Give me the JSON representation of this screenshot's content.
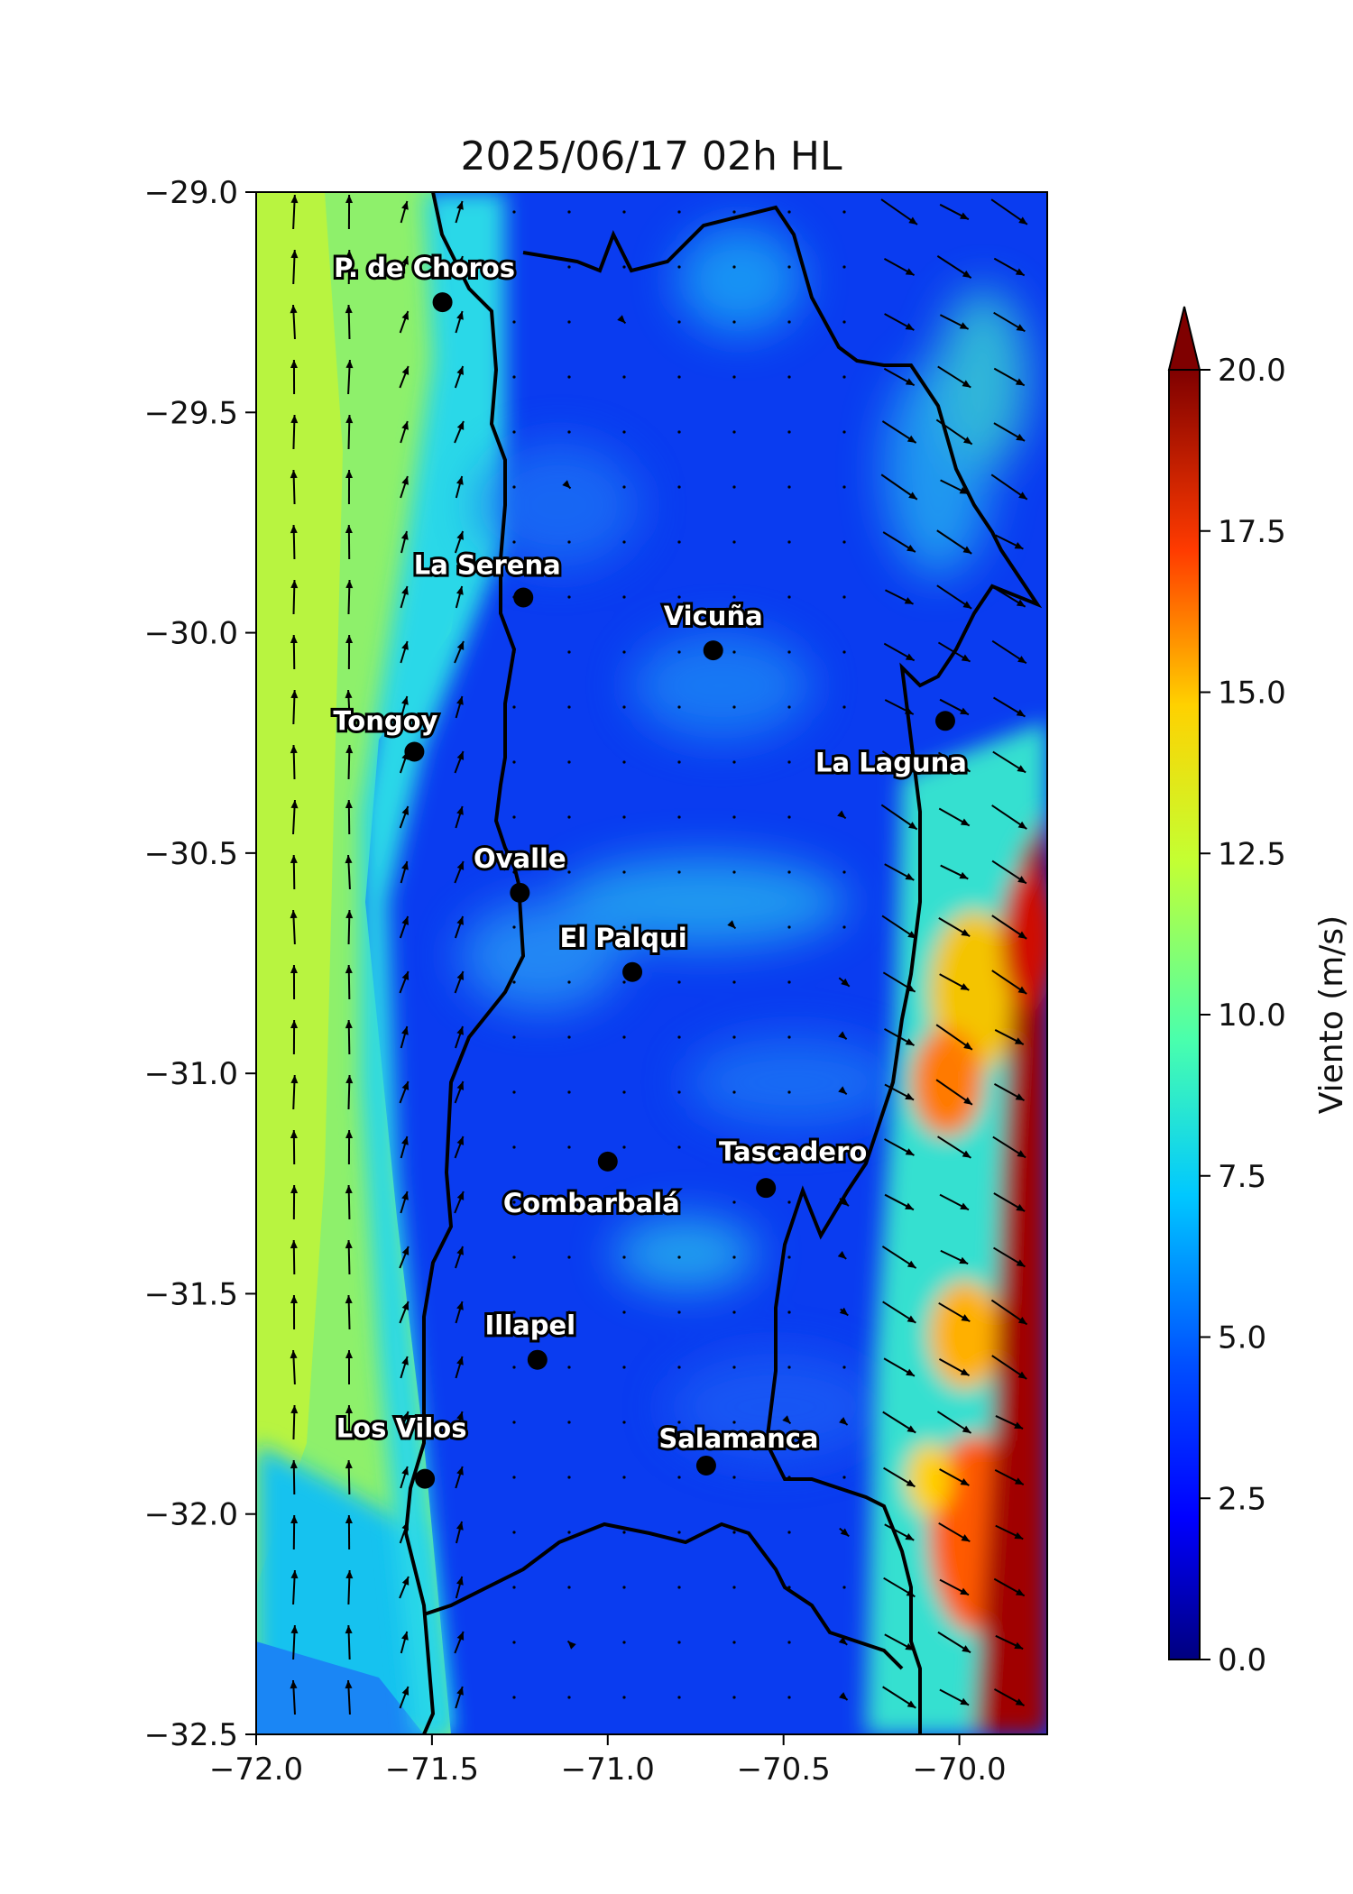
{
  "title": "2025/06/17 02h HL",
  "map": {
    "x_ticks": [
      "−72.0",
      "−71.5",
      "−71.0",
      "−70.5",
      "−70.0"
    ],
    "y_ticks": [
      "−29.0",
      "−29.5",
      "−30.0",
      "−30.5",
      "−31.0",
      "−31.5",
      "−32.0",
      "−32.5"
    ],
    "lon_range": [
      -72.0,
      -69.75
    ],
    "lat_range": [
      -32.5,
      -29.0
    ],
    "cities": [
      {
        "name": "P. de Choros",
        "lon": -71.47,
        "lat": -29.25
      },
      {
        "name": "La Serena",
        "lon": -71.24,
        "lat": -29.92
      },
      {
        "name": "Vicuña",
        "lon": -70.7,
        "lat": -30.04
      },
      {
        "name": "Tongoy",
        "lon": -71.55,
        "lat": -30.27
      },
      {
        "name": "La Laguna",
        "lon": -70.04,
        "lat": -30.2
      },
      {
        "name": "Ovalle",
        "lon": -71.25,
        "lat": -30.59
      },
      {
        "name": "El Palqui",
        "lon": -70.93,
        "lat": -30.77
      },
      {
        "name": "Combarbalá",
        "lon": -71.0,
        "lat": -31.2
      },
      {
        "name": "Tascadero",
        "lon": -70.55,
        "lat": -31.26
      },
      {
        "name": "Illapel",
        "lon": -71.2,
        "lat": -31.65
      },
      {
        "name": "Los Vilos",
        "lon": -71.52,
        "lat": -31.92
      },
      {
        "name": "Salamanca",
        "lon": -70.72,
        "lat": -31.89
      }
    ]
  },
  "colorbar": {
    "label": "Viento (m/s)",
    "ticks": [
      "0.0",
      "2.5",
      "5.0",
      "7.5",
      "10.0",
      "12.5",
      "15.0",
      "17.5",
      "20.0"
    ],
    "min": 0.0,
    "max": 20.0,
    "extend": "max",
    "colormap": "jet"
  }
}
